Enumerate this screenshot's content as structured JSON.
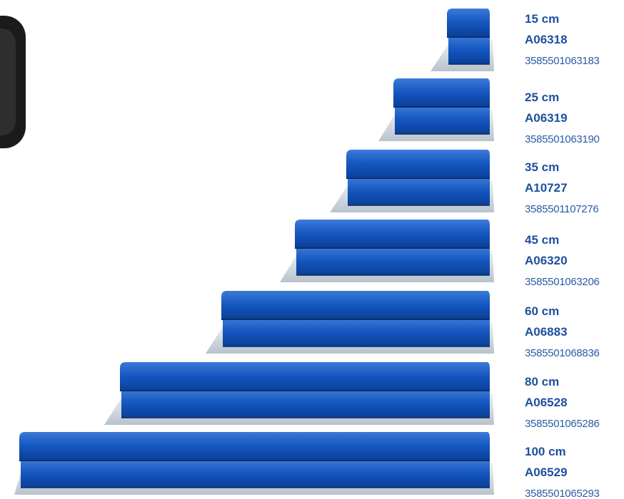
{
  "products": [
    {
      "size": "15 cm",
      "code": "A06318",
      "ean": "3585501063183"
    },
    {
      "size": "25 cm",
      "code": "A06319",
      "ean": "3585501063190"
    },
    {
      "size": "35 cm",
      "code": "A10727",
      "ean": "3585501107276"
    },
    {
      "size": "45 cm",
      "code": "A06320",
      "ean": "3585501063206"
    },
    {
      "size": "60 cm",
      "code": "A06883",
      "ean": "3585501068836"
    },
    {
      "size": "80 cm",
      "code": "A06528",
      "ean": "3585501065286"
    },
    {
      "size": "100 cm",
      "code": "A06529",
      "ean": "3585501065293"
    }
  ]
}
